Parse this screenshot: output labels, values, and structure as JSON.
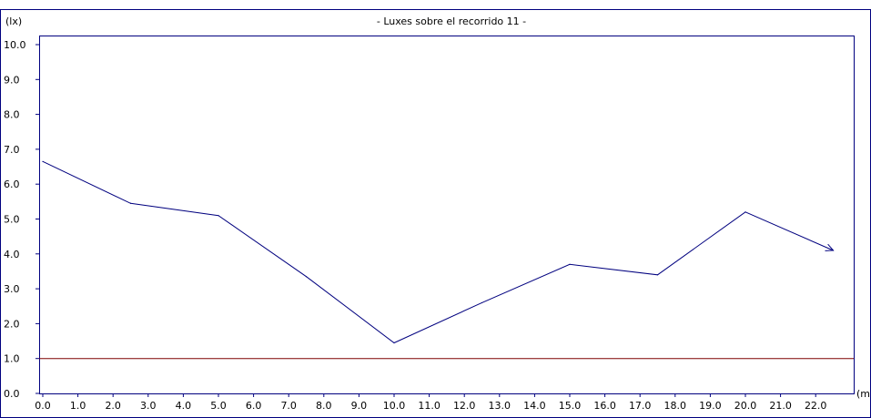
{
  "chart_data": {
    "type": "line",
    "title": "- Luxes sobre el recorrido 11 -",
    "ylabel": "(lx)",
    "xlabel": "(m",
    "x_ticks": [
      "0.0",
      "1.0",
      "2.0",
      "3.0",
      "4.0",
      "5.0",
      "6.0",
      "7.0",
      "8.0",
      "9.0",
      "10.0",
      "11.0",
      "12.0",
      "13.0",
      "14.0",
      "15.0",
      "16.0",
      "17.0",
      "18.0",
      "19.0",
      "20.0",
      "21.0",
      "22.0"
    ],
    "y_ticks": [
      "0.0",
      "1.0",
      "2.0",
      "3.0",
      "4.0",
      "5.0",
      "6.0",
      "7.0",
      "8.0",
      "9.0",
      "10.0"
    ],
    "xlim": [
      0,
      23
    ],
    "ylim": [
      0,
      10.2
    ],
    "series": [
      {
        "x": [
          0,
          2.5,
          5.0,
          7.5,
          10.0,
          12.5,
          15.0,
          17.5,
          20.0,
          22.5
        ],
        "values": [
          6.65,
          5.45,
          5.1,
          3.35,
          1.45,
          2.6,
          3.7,
          3.4,
          5.2,
          4.1
        ],
        "color": "#00007f",
        "end_arrow": true
      }
    ],
    "reference_line": {
      "y": 1.0,
      "color": "#7f0000"
    },
    "frame_color": "#00007f",
    "grid": false
  }
}
